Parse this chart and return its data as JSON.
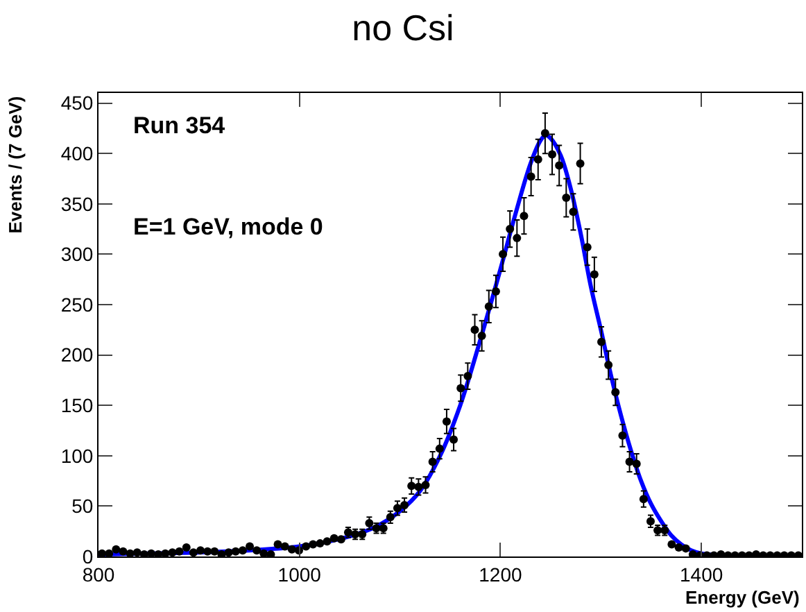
{
  "chart_data": {
    "type": "scatter",
    "title": "no Csi",
    "xlabel": "Energy (GeV)",
    "ylabel": "Events / (7 GeV)",
    "annotations": [
      "Run 354",
      "E=1 GeV, mode 0"
    ],
    "xlim": [
      800,
      1500
    ],
    "xticks": [
      800,
      1000,
      1200,
      1400
    ],
    "ylim": [
      0,
      460
    ],
    "yticks": [
      0,
      50,
      100,
      150,
      200,
      250,
      300,
      350,
      400,
      450
    ],
    "series": [
      {
        "color": "#000000",
        "marker": "circle",
        "x": [
          803.5,
          810.5,
          817.5,
          824.5,
          831.5,
          838.5,
          845.5,
          852.5,
          859.5,
          866.5,
          873.5,
          880.5,
          887.5,
          894.5,
          901.5,
          908.5,
          915.5,
          922.5,
          929.5,
          936.5,
          943.5,
          950.5,
          957.5,
          964.5,
          971.5,
          978.5,
          985.5,
          992.5,
          999.5,
          1006.5,
          1013.5,
          1020.5,
          1027.5,
          1034.5,
          1041.5,
          1048.5,
          1055.5,
          1062.5,
          1069.5,
          1076.5,
          1083.5,
          1090.5,
          1097.5,
          1104.5,
          1111.5,
          1118.5,
          1125.5,
          1132.5,
          1139.5,
          1146.5,
          1153.5,
          1160.5,
          1167.5,
          1174.5,
          1181.5,
          1188.5,
          1195.5,
          1202.5,
          1209.5,
          1216.5,
          1223.5,
          1230.5,
          1237.5,
          1244.5,
          1251.5,
          1258.5,
          1265.5,
          1272.5,
          1279.5,
          1286.5,
          1293.5,
          1300.5,
          1307.5,
          1314.5,
          1321.5,
          1328.5,
          1335.5,
          1342.5,
          1349.5,
          1356.5,
          1363.5,
          1370.5,
          1377.5,
          1384.5,
          1391.5,
          1398.5,
          1405.5,
          1412.5,
          1419.5,
          1426.5,
          1433.5,
          1440.5,
          1447.5,
          1454.5,
          1461.5,
          1468.5,
          1475.5,
          1482.5,
          1489.5,
          1496.5
        ],
        "values": [
          3,
          3,
          7,
          5,
          3,
          4,
          2,
          3,
          2,
          3,
          4,
          5,
          9,
          4,
          6,
          5,
          5,
          2,
          4,
          5,
          6,
          10,
          6,
          3,
          2,
          12,
          10,
          7,
          6,
          10,
          12,
          13,
          15,
          18,
          17,
          24,
          22,
          22,
          33,
          28,
          28,
          39,
          48,
          51,
          70,
          69,
          71,
          94,
          107,
          134,
          116,
          167,
          179,
          225,
          219,
          248,
          263,
          300,
          325,
          316,
          338,
          377,
          394,
          420,
          399,
          388,
          356,
          342,
          390,
          307,
          280,
          213,
          190,
          163,
          120,
          94,
          92,
          57,
          35,
          26,
          26,
          12,
          9,
          8,
          2,
          1,
          1,
          1,
          2,
          1,
          1,
          1,
          1,
          2,
          1,
          1,
          1,
          1,
          1,
          1
        ],
        "errors": [
          null,
          null,
          null,
          null,
          null,
          null,
          null,
          null,
          null,
          null,
          null,
          null,
          null,
          null,
          null,
          null,
          null,
          null,
          null,
          null,
          null,
          null,
          null,
          null,
          null,
          null,
          null,
          null,
          null,
          null,
          null,
          null,
          null,
          null,
          null,
          5,
          5,
          5,
          6,
          5,
          5,
          6,
          7,
          7,
          8,
          8,
          8,
          10,
          10,
          12,
          11,
          13,
          13,
          15,
          15,
          16,
          16,
          17,
          18,
          18,
          18,
          19,
          20,
          20,
          20,
          20,
          19,
          18,
          20,
          18,
          17,
          15,
          14,
          13,
          11,
          10,
          10,
          8,
          6,
          5,
          5,
          null,
          null,
          null,
          null,
          null,
          null,
          null,
          null,
          null,
          null,
          null,
          null,
          null,
          null,
          null,
          null,
          null,
          null,
          null
        ]
      },
      {
        "type": "line",
        "color": "#0000ff",
        "marker": "none",
        "line_style": "solid",
        "x": [
          800,
          850,
          900,
          950,
          1000,
          1025,
          1050,
          1075,
          1100,
          1120,
          1140,
          1160,
          1180,
          1200,
          1215,
          1230,
          1240,
          1245,
          1250,
          1260,
          1270,
          1280,
          1290,
          1300,
          1310,
          1320,
          1330,
          1340,
          1350,
          1360,
          1370,
          1380,
          1390,
          1400,
          1420
        ],
        "values": [
          2,
          3,
          4,
          6,
          10,
          14,
          20,
          29,
          45,
          65,
          100,
          150,
          215,
          285,
          340,
          390,
          413,
          418,
          415,
          398,
          365,
          320,
          268,
          225,
          180,
          140,
          105,
          75,
          52,
          35,
          21,
          12,
          6,
          3,
          1
        ]
      }
    ]
  }
}
